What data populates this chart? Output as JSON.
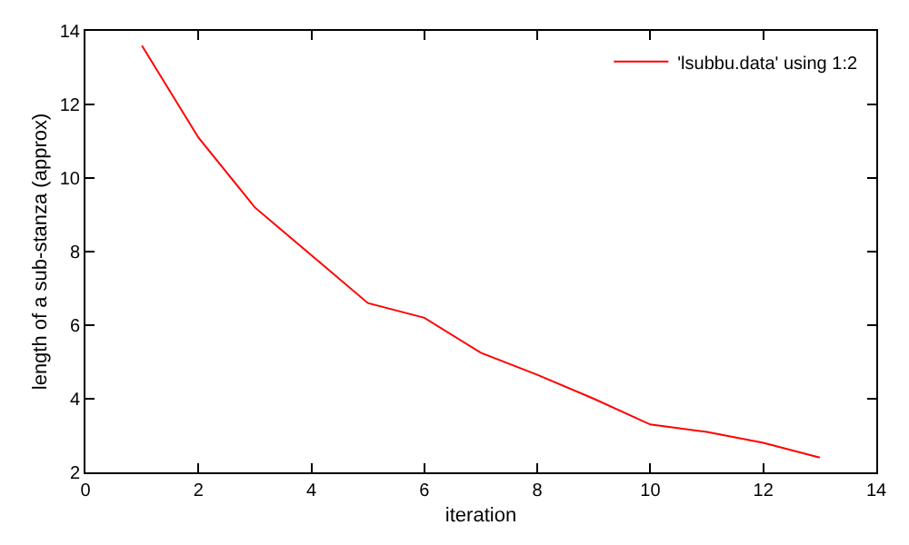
{
  "chart_data": {
    "type": "line",
    "xlabel": "iteration",
    "ylabel": "length of a sub-stanza (approx)",
    "x": [
      1,
      2,
      3,
      4,
      5,
      6,
      7,
      8,
      9,
      10,
      11,
      12,
      13
    ],
    "series": [
      {
        "name": "'lsubbu.data' using 1:2",
        "color": "#ff0000",
        "values": [
          13.6,
          11.1,
          9.2,
          7.9,
          6.6,
          6.2,
          5.25,
          4.65,
          4.0,
          3.3,
          3.1,
          2.8,
          2.4
        ]
      }
    ],
    "xlim": [
      0,
      14
    ],
    "xticks": [
      0,
      2,
      4,
      6,
      8,
      10,
      12,
      14
    ],
    "ylim": [
      2,
      14
    ],
    "yticks": [
      2,
      4,
      6,
      8,
      10,
      12,
      14
    ],
    "grid": false,
    "legend": "top right",
    "marker": "none",
    "line_style": "solid"
  }
}
